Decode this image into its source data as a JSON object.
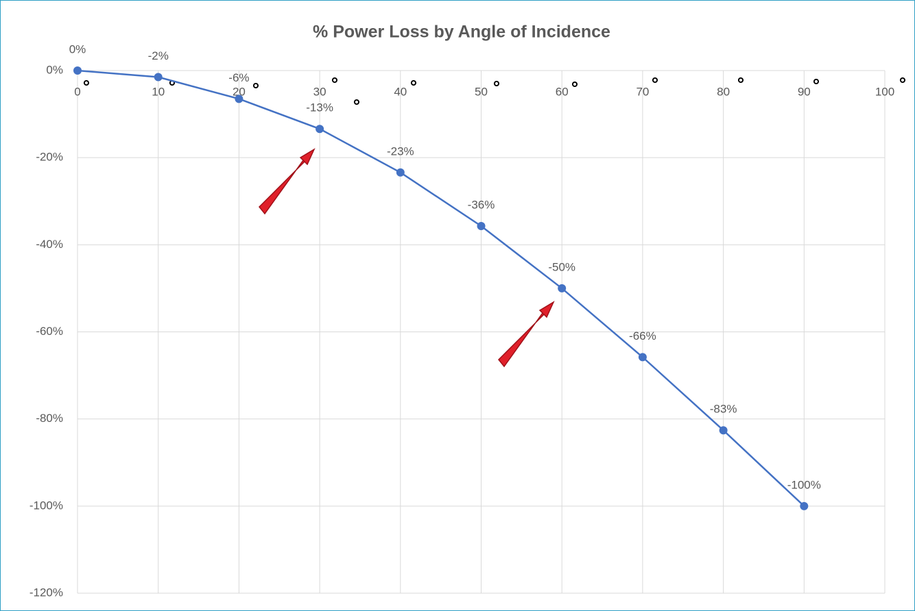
{
  "chart_data": {
    "type": "line",
    "title": "% Power Loss by Angle of Incidence",
    "x": [
      0,
      10,
      20,
      30,
      40,
      50,
      60,
      70,
      80,
      90
    ],
    "series": [
      {
        "name": "% Power Loss",
        "color": "#4472c4",
        "values": [
          0,
          -1.5,
          -6.5,
          -13.4,
          -23.4,
          -35.7,
          -50,
          -65.8,
          -82.6,
          -100
        ],
        "value_labels": [
          "0%",
          "-2%",
          "-6%",
          "-13%",
          "-23%",
          "-36%",
          "-50%",
          "-66%",
          "-83%",
          "-100%"
        ]
      }
    ],
    "xlim": [
      0,
      100
    ],
    "xticks": [
      0,
      10,
      20,
      30,
      40,
      50,
      60,
      70,
      80,
      90,
      100
    ],
    "ylim": [
      -120,
      0
    ],
    "yticks": [
      {
        "value": 0,
        "label": "0%"
      },
      {
        "value": -20,
        "label": "-20%"
      },
      {
        "value": -40,
        "label": "-40%"
      },
      {
        "value": -60,
        "label": "-60%"
      },
      {
        "value": -80,
        "label": "-80%"
      },
      {
        "value": -100,
        "label": "-100%"
      },
      {
        "value": -120,
        "label": "-120%"
      }
    ],
    "annotations": [
      "°",
      "°",
      "°",
      "°",
      "°",
      "°",
      "°",
      "°",
      "°",
      "°",
      "°",
      "°"
    ],
    "grid": true
  }
}
